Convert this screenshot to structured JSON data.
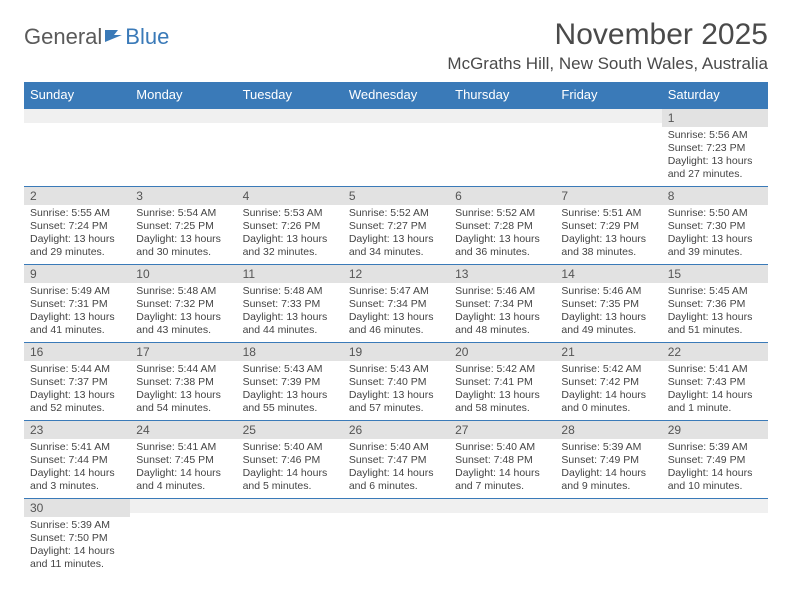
{
  "logo": {
    "text1": "General",
    "text2": "Blue"
  },
  "title": "November 2025",
  "location": "McGraths Hill, New South Wales, Australia",
  "colors": {
    "header_bg": "#3a7ab8",
    "header_text": "#ffffff",
    "daynum_bg": "#e2e2e2",
    "text": "#444444",
    "border": "#3a7ab8"
  },
  "weekdays": [
    "Sunday",
    "Monday",
    "Tuesday",
    "Wednesday",
    "Thursday",
    "Friday",
    "Saturday"
  ],
  "weeks": [
    [
      {
        "empty": true
      },
      {
        "empty": true
      },
      {
        "empty": true
      },
      {
        "empty": true
      },
      {
        "empty": true
      },
      {
        "empty": true
      },
      {
        "day": "1",
        "sunrise": "Sunrise: 5:56 AM",
        "sunset": "Sunset: 7:23 PM",
        "daylight": "Daylight: 13 hours and 27 minutes."
      }
    ],
    [
      {
        "day": "2",
        "sunrise": "Sunrise: 5:55 AM",
        "sunset": "Sunset: 7:24 PM",
        "daylight": "Daylight: 13 hours and 29 minutes."
      },
      {
        "day": "3",
        "sunrise": "Sunrise: 5:54 AM",
        "sunset": "Sunset: 7:25 PM",
        "daylight": "Daylight: 13 hours and 30 minutes."
      },
      {
        "day": "4",
        "sunrise": "Sunrise: 5:53 AM",
        "sunset": "Sunset: 7:26 PM",
        "daylight": "Daylight: 13 hours and 32 minutes."
      },
      {
        "day": "5",
        "sunrise": "Sunrise: 5:52 AM",
        "sunset": "Sunset: 7:27 PM",
        "daylight": "Daylight: 13 hours and 34 minutes."
      },
      {
        "day": "6",
        "sunrise": "Sunrise: 5:52 AM",
        "sunset": "Sunset: 7:28 PM",
        "daylight": "Daylight: 13 hours and 36 minutes."
      },
      {
        "day": "7",
        "sunrise": "Sunrise: 5:51 AM",
        "sunset": "Sunset: 7:29 PM",
        "daylight": "Daylight: 13 hours and 38 minutes."
      },
      {
        "day": "8",
        "sunrise": "Sunrise: 5:50 AM",
        "sunset": "Sunset: 7:30 PM",
        "daylight": "Daylight: 13 hours and 39 minutes."
      }
    ],
    [
      {
        "day": "9",
        "sunrise": "Sunrise: 5:49 AM",
        "sunset": "Sunset: 7:31 PM",
        "daylight": "Daylight: 13 hours and 41 minutes."
      },
      {
        "day": "10",
        "sunrise": "Sunrise: 5:48 AM",
        "sunset": "Sunset: 7:32 PM",
        "daylight": "Daylight: 13 hours and 43 minutes."
      },
      {
        "day": "11",
        "sunrise": "Sunrise: 5:48 AM",
        "sunset": "Sunset: 7:33 PM",
        "daylight": "Daylight: 13 hours and 44 minutes."
      },
      {
        "day": "12",
        "sunrise": "Sunrise: 5:47 AM",
        "sunset": "Sunset: 7:34 PM",
        "daylight": "Daylight: 13 hours and 46 minutes."
      },
      {
        "day": "13",
        "sunrise": "Sunrise: 5:46 AM",
        "sunset": "Sunset: 7:34 PM",
        "daylight": "Daylight: 13 hours and 48 minutes."
      },
      {
        "day": "14",
        "sunrise": "Sunrise: 5:46 AM",
        "sunset": "Sunset: 7:35 PM",
        "daylight": "Daylight: 13 hours and 49 minutes."
      },
      {
        "day": "15",
        "sunrise": "Sunrise: 5:45 AM",
        "sunset": "Sunset: 7:36 PM",
        "daylight": "Daylight: 13 hours and 51 minutes."
      }
    ],
    [
      {
        "day": "16",
        "sunrise": "Sunrise: 5:44 AM",
        "sunset": "Sunset: 7:37 PM",
        "daylight": "Daylight: 13 hours and 52 minutes."
      },
      {
        "day": "17",
        "sunrise": "Sunrise: 5:44 AM",
        "sunset": "Sunset: 7:38 PM",
        "daylight": "Daylight: 13 hours and 54 minutes."
      },
      {
        "day": "18",
        "sunrise": "Sunrise: 5:43 AM",
        "sunset": "Sunset: 7:39 PM",
        "daylight": "Daylight: 13 hours and 55 minutes."
      },
      {
        "day": "19",
        "sunrise": "Sunrise: 5:43 AM",
        "sunset": "Sunset: 7:40 PM",
        "daylight": "Daylight: 13 hours and 57 minutes."
      },
      {
        "day": "20",
        "sunrise": "Sunrise: 5:42 AM",
        "sunset": "Sunset: 7:41 PM",
        "daylight": "Daylight: 13 hours and 58 minutes."
      },
      {
        "day": "21",
        "sunrise": "Sunrise: 5:42 AM",
        "sunset": "Sunset: 7:42 PM",
        "daylight": "Daylight: 14 hours and 0 minutes."
      },
      {
        "day": "22",
        "sunrise": "Sunrise: 5:41 AM",
        "sunset": "Sunset: 7:43 PM",
        "daylight": "Daylight: 14 hours and 1 minute."
      }
    ],
    [
      {
        "day": "23",
        "sunrise": "Sunrise: 5:41 AM",
        "sunset": "Sunset: 7:44 PM",
        "daylight": "Daylight: 14 hours and 3 minutes."
      },
      {
        "day": "24",
        "sunrise": "Sunrise: 5:41 AM",
        "sunset": "Sunset: 7:45 PM",
        "daylight": "Daylight: 14 hours and 4 minutes."
      },
      {
        "day": "25",
        "sunrise": "Sunrise: 5:40 AM",
        "sunset": "Sunset: 7:46 PM",
        "daylight": "Daylight: 14 hours and 5 minutes."
      },
      {
        "day": "26",
        "sunrise": "Sunrise: 5:40 AM",
        "sunset": "Sunset: 7:47 PM",
        "daylight": "Daylight: 14 hours and 6 minutes."
      },
      {
        "day": "27",
        "sunrise": "Sunrise: 5:40 AM",
        "sunset": "Sunset: 7:48 PM",
        "daylight": "Daylight: 14 hours and 7 minutes."
      },
      {
        "day": "28",
        "sunrise": "Sunrise: 5:39 AM",
        "sunset": "Sunset: 7:49 PM",
        "daylight": "Daylight: 14 hours and 9 minutes."
      },
      {
        "day": "29",
        "sunrise": "Sunrise: 5:39 AM",
        "sunset": "Sunset: 7:49 PM",
        "daylight": "Daylight: 14 hours and 10 minutes."
      }
    ],
    [
      {
        "day": "30",
        "sunrise": "Sunrise: 5:39 AM",
        "sunset": "Sunset: 7:50 PM",
        "daylight": "Daylight: 14 hours and 11 minutes."
      },
      {
        "empty": true
      },
      {
        "empty": true
      },
      {
        "empty": true
      },
      {
        "empty": true
      },
      {
        "empty": true
      },
      {
        "empty": true
      }
    ]
  ]
}
